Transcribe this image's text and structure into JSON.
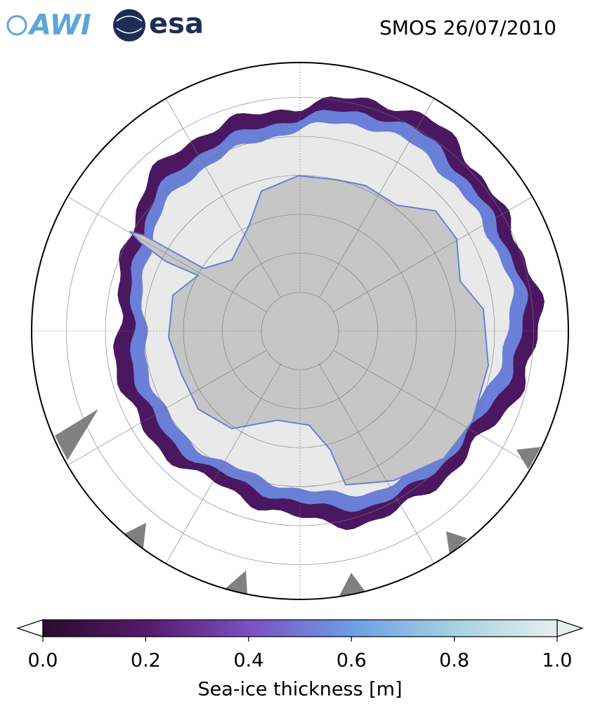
{
  "header": {
    "logos": [
      "AWI",
      "esa"
    ],
    "title": "SMOS 26/07/2010"
  },
  "colorbar": {
    "label": "Sea-ice thickness [m]",
    "vlim": [
      0,
      1
    ],
    "ticks": [
      {
        "value": 0,
        "label": "0.0"
      },
      0.2,
      0.4,
      0.6,
      0.8,
      {
        "value": 1,
        "label": "1.0"
      }
    ],
    "colors": [
      "#2a0b2e",
      "#55196a",
      "#7a4fc2",
      "#6e9de6",
      "#a3d3e2",
      "#e6eeee"
    ]
  }
}
